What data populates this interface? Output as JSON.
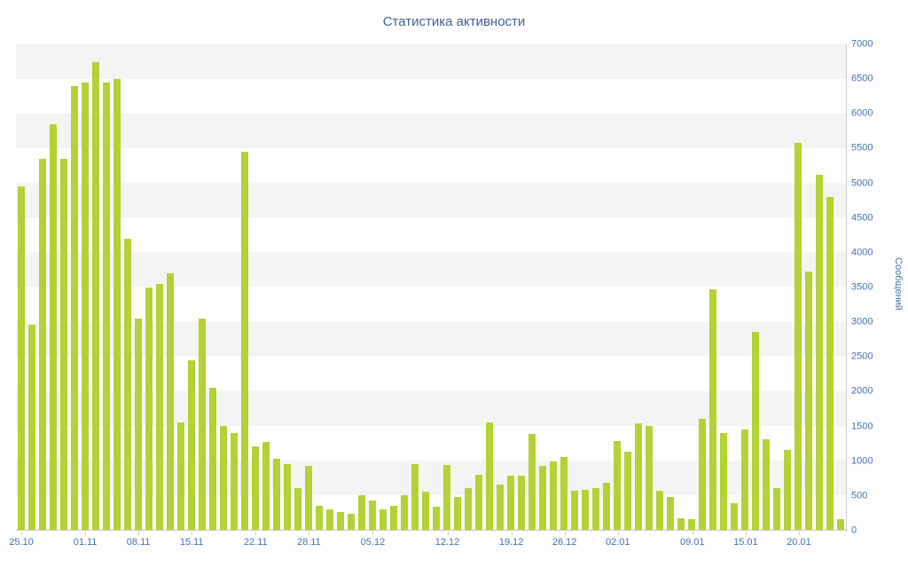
{
  "colors": {
    "title": "#40618f",
    "axis_label": "#4572a7",
    "bar": "#b2d235",
    "band": "#f4f4f4",
    "axis_line": "#c9c9c9"
  },
  "chart_data": {
    "type": "bar",
    "title": "Статистика активности",
    "ylabel": "Сообщений",
    "xlabel": "",
    "ylim": [
      0,
      7000
    ],
    "ytick_step": 500,
    "yticks": [
      0,
      500,
      1000,
      1500,
      2000,
      2500,
      3000,
      3500,
      4000,
      4500,
      5000,
      5500,
      6000,
      6500,
      7000
    ],
    "grid": "alternating-horizontal-bands",
    "legend": "none",
    "values": [
      4950,
      2950,
      5350,
      5850,
      5350,
      6400,
      6450,
      6750,
      6450,
      6500,
      4200,
      3050,
      3500,
      3550,
      3700,
      1550,
      2450,
      3050,
      2050,
      1500,
      1400,
      5450,
      1200,
      1270,
      1030,
      950,
      600,
      920,
      350,
      300,
      250,
      230,
      500,
      420,
      300,
      350,
      500,
      950,
      550,
      330,
      930,
      480,
      600,
      790,
      1550,
      650,
      780,
      780,
      1380,
      920,
      990,
      1050,
      560,
      580,
      600,
      680,
      1280,
      1120,
      1530,
      1500,
      560,
      480,
      170,
      160,
      1600,
      3470,
      1390,
      380,
      1450,
      2850,
      1300,
      600,
      1150,
      5580,
      3720,
      5120,
      4800,
      150
    ],
    "x_ticks": [
      {
        "index": 0,
        "label": "25.10"
      },
      {
        "index": 6,
        "label": "01.11"
      },
      {
        "index": 11,
        "label": "08.11"
      },
      {
        "index": 16,
        "label": "15.11"
      },
      {
        "index": 22,
        "label": "22.11"
      },
      {
        "index": 27,
        "label": "28.11"
      },
      {
        "index": 33,
        "label": "05.12"
      },
      {
        "index": 40,
        "label": "12.12"
      },
      {
        "index": 46,
        "label": "19.12"
      },
      {
        "index": 51,
        "label": "26.12"
      },
      {
        "index": 56,
        "label": "02.01"
      },
      {
        "index": 63,
        "label": "09.01"
      },
      {
        "index": 68,
        "label": "15.01"
      },
      {
        "index": 73,
        "label": "20.01"
      }
    ]
  }
}
